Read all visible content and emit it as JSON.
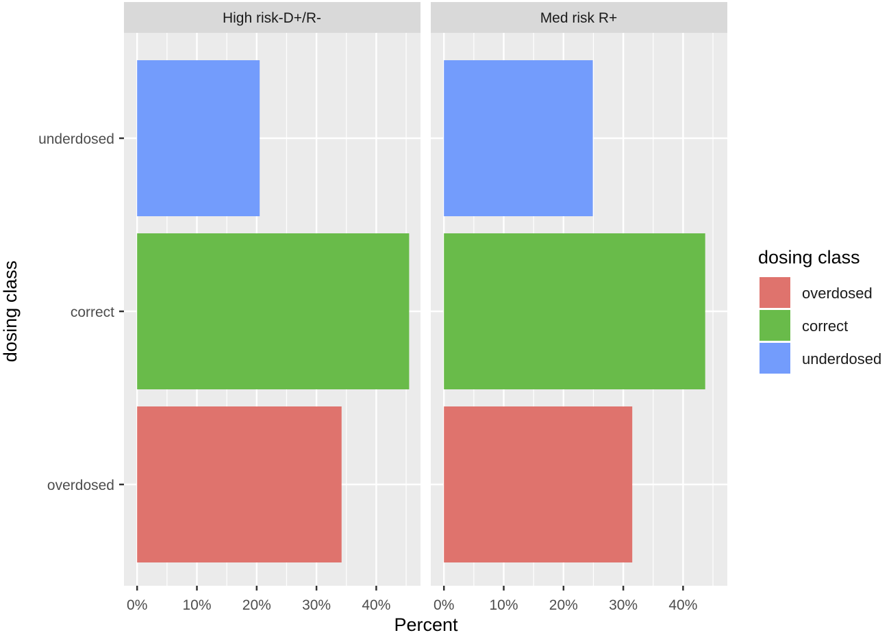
{
  "chart_data": {
    "type": "bar",
    "orientation": "horizontal",
    "facets": [
      "High risk-D+/R-",
      "Med risk R+"
    ],
    "categories": [
      "underdosed",
      "correct",
      "overdosed"
    ],
    "values": {
      "High risk-D+/R-": [
        20.5,
        45.5,
        34.2
      ],
      "Med risk R+": [
        24.9,
        43.7,
        31.5
      ]
    },
    "colors": {
      "overdosed": "#DF736D",
      "correct": "#69BB4A",
      "underdosed": "#739CFC"
    },
    "xlabel": "Percent",
    "ylabel": "dosing class",
    "xticks": [
      "0%",
      "10%",
      "20%",
      "30%",
      "40%"
    ],
    "xlim": [
      -2.2,
      47.4
    ],
    "legend": {
      "title": "dosing class",
      "position": "right",
      "items": [
        "overdosed",
        "correct",
        "underdosed"
      ]
    },
    "grid": true
  }
}
